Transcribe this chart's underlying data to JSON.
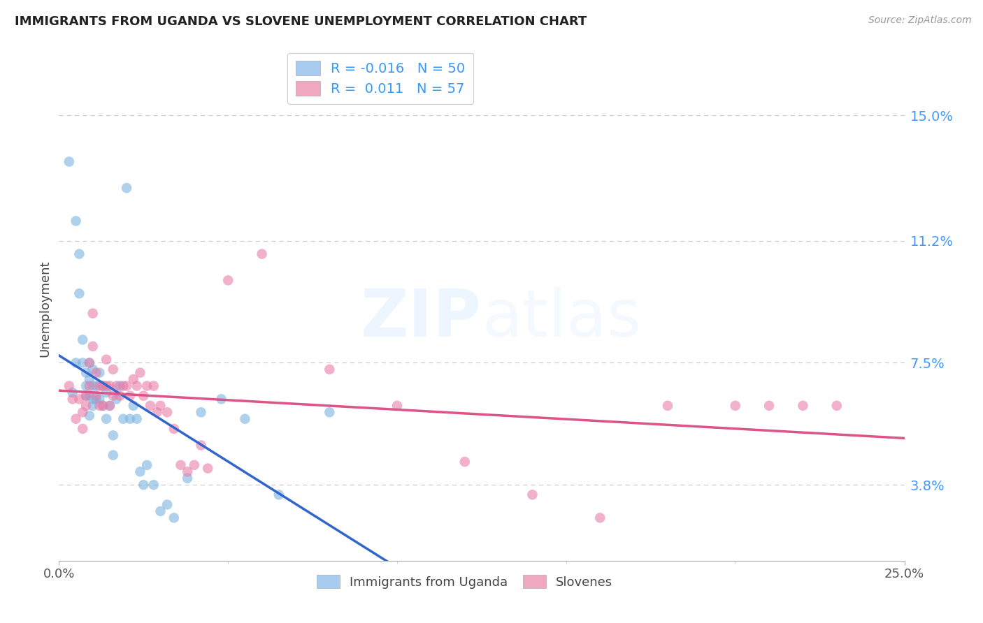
{
  "title": "IMMIGRANTS FROM UGANDA VS SLOVENE UNEMPLOYMENT CORRELATION CHART",
  "source": "Source: ZipAtlas.com",
  "ylabel": "Unemployment",
  "ytick_labels": [
    "15.0%",
    "11.2%",
    "7.5%",
    "3.8%"
  ],
  "ytick_values": [
    0.15,
    0.112,
    0.075,
    0.038
  ],
  "xlim": [
    0.0,
    0.25
  ],
  "ylim": [
    0.015,
    0.168
  ],
  "series1_label": "Immigrants from Uganda",
  "series2_label": "Slovenes",
  "series1_color": "#7ab3e0",
  "series2_color": "#e87da8",
  "line1_color_solid": "#3366cc",
  "line1_color_dash": "#99bbee",
  "line2_color_solid": "#dd5588",
  "line2_color_dash": "#ee99bb",
  "background_color": "#ffffff",
  "grid_color": "#cccccc",
  "watermark": "ZIPatlas",
  "series1_x": [
    0.003,
    0.004,
    0.005,
    0.005,
    0.006,
    0.006,
    0.007,
    0.007,
    0.008,
    0.008,
    0.008,
    0.009,
    0.009,
    0.009,
    0.009,
    0.01,
    0.01,
    0.01,
    0.01,
    0.011,
    0.011,
    0.012,
    0.012,
    0.013,
    0.013,
    0.014,
    0.014,
    0.015,
    0.016,
    0.016,
    0.017,
    0.018,
    0.019,
    0.02,
    0.021,
    0.022,
    0.023,
    0.024,
    0.025,
    0.026,
    0.028,
    0.03,
    0.032,
    0.034,
    0.038,
    0.042,
    0.048,
    0.055,
    0.065,
    0.08
  ],
  "series1_y": [
    0.136,
    0.066,
    0.118,
    0.075,
    0.108,
    0.096,
    0.082,
    0.075,
    0.072,
    0.068,
    0.065,
    0.075,
    0.07,
    0.065,
    0.059,
    0.073,
    0.068,
    0.064,
    0.062,
    0.068,
    0.064,
    0.072,
    0.064,
    0.068,
    0.062,
    0.066,
    0.058,
    0.062,
    0.053,
    0.047,
    0.064,
    0.068,
    0.058,
    0.128,
    0.058,
    0.062,
    0.058,
    0.042,
    0.038,
    0.044,
    0.038,
    0.03,
    0.032,
    0.028,
    0.04,
    0.06,
    0.064,
    0.058,
    0.035,
    0.06
  ],
  "series2_x": [
    0.003,
    0.004,
    0.005,
    0.006,
    0.007,
    0.007,
    0.008,
    0.008,
    0.009,
    0.009,
    0.01,
    0.01,
    0.011,
    0.011,
    0.012,
    0.012,
    0.013,
    0.013,
    0.014,
    0.014,
    0.015,
    0.015,
    0.016,
    0.016,
    0.017,
    0.018,
    0.019,
    0.02,
    0.021,
    0.022,
    0.023,
    0.024,
    0.025,
    0.026,
    0.027,
    0.028,
    0.029,
    0.03,
    0.032,
    0.034,
    0.036,
    0.038,
    0.04,
    0.042,
    0.044,
    0.05,
    0.06,
    0.08,
    0.1,
    0.12,
    0.14,
    0.16,
    0.18,
    0.2,
    0.21,
    0.22,
    0.23
  ],
  "series2_y": [
    0.068,
    0.064,
    0.058,
    0.064,
    0.06,
    0.055,
    0.065,
    0.062,
    0.075,
    0.068,
    0.09,
    0.08,
    0.072,
    0.065,
    0.068,
    0.062,
    0.068,
    0.062,
    0.076,
    0.068,
    0.068,
    0.062,
    0.073,
    0.065,
    0.068,
    0.065,
    0.068,
    0.068,
    0.065,
    0.07,
    0.068,
    0.072,
    0.065,
    0.068,
    0.062,
    0.068,
    0.06,
    0.062,
    0.06,
    0.055,
    0.044,
    0.042,
    0.044,
    0.05,
    0.043,
    0.1,
    0.108,
    0.073,
    0.062,
    0.045,
    0.035,
    0.028,
    0.062,
    0.062,
    0.062,
    0.062,
    0.062
  ]
}
